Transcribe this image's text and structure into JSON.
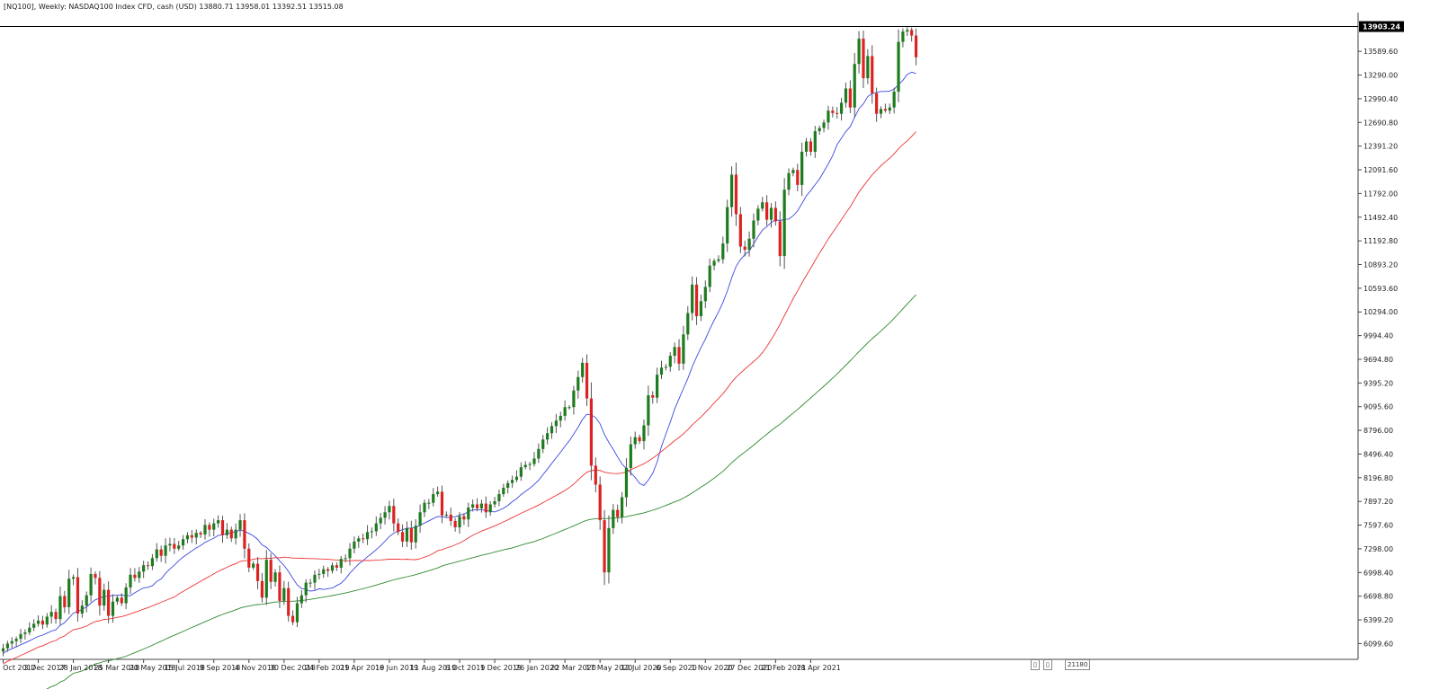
{
  "header": {
    "title": "[NQ100], Weekly:  NASDAQ100 Index CFD, cash (USD)  13880.71 13958.01 13392.51 13515.08"
  },
  "price_tag": "13903.24",
  "controls": {
    "scroll_label": "21180"
  },
  "colors": {
    "bull": "#1e7b1e",
    "bear": "#dc2222",
    "wick": "#555555",
    "ma_fast": "#3b48e0",
    "ma_mid": "#ee3333",
    "ma_slow": "#2d8a2d",
    "price_line": "#000000",
    "price_tag_bg": "#000000"
  },
  "chart_data": {
    "type": "candlestick",
    "symbol": "NQ100",
    "timeframe": "Weekly",
    "y_ticks": [
      "13589.60",
      "13290.00",
      "12990.40",
      "12690.80",
      "12391.20",
      "12091.60",
      "11792.00",
      "11492.40",
      "11192.80",
      "10893.20",
      "10593.60",
      "10294.00",
      "9994.40",
      "9694.80",
      "9395.20",
      "9095.60",
      "8796.00",
      "8496.40",
      "8196.80",
      "7897.20",
      "7597.60",
      "7298.00",
      "6998.40",
      "6698.80",
      "6399.20",
      "6099.60"
    ],
    "x_ticks": [
      "8 Oct 2017",
      "3 Dec 2017",
      "28 Jan 2018",
      "25 Mar 2018",
      "20 May 2018",
      "15 Jul 2018",
      "9 Sep 2018",
      "4 Nov 2018",
      "30 Dec 2018",
      "24 Feb 2019",
      "21 Apr 2019",
      "16 Jun 2019",
      "11 Aug 2019",
      "6 Oct 2019",
      "1 Dec 2019",
      "26 Jan 2020",
      "22 Mar 2020",
      "17 May 2020",
      "12 Jul 2020",
      "6 Sep 2020",
      "1 Nov 2020",
      "27 Dec 2020",
      "21 Feb 2021",
      "18 Apr 2021"
    ],
    "ylim": [
      5900,
      14080
    ],
    "current_price": 13903.24,
    "closes": [
      6040,
      6100,
      6130,
      6160,
      6220,
      6240,
      6300,
      6350,
      6390,
      6340,
      6440,
      6500,
      6410,
      6700,
      6560,
      6920,
      6940,
      6480,
      6580,
      6710,
      6980,
      6930,
      6580,
      6780,
      6450,
      6630,
      6680,
      6610,
      6810,
      6970,
      6930,
      7010,
      7090,
      7080,
      7180,
      7290,
      7210,
      7340,
      7360,
      7300,
      7340,
      7420,
      7470,
      7440,
      7500,
      7480,
      7600,
      7540,
      7620,
      7660,
      7470,
      7540,
      7430,
      7540,
      7660,
      7300,
      7060,
      7110,
      6890,
      6680,
      7160,
      6880,
      7000,
      6640,
      6800,
      6450,
      6370,
      6610,
      6710,
      6870,
      6870,
      6970,
      6980,
      7040,
      7020,
      7090,
      7060,
      7170,
      7180,
      7300,
      7390,
      7430,
      7420,
      7510,
      7520,
      7620,
      7690,
      7760,
      7840,
      7620,
      7510,
      7390,
      7560,
      7380,
      7590,
      7760,
      7880,
      7880,
      7990,
      8020,
      7720,
      7730,
      7650,
      7570,
      7710,
      7670,
      7820,
      7860,
      7810,
      7870,
      7760,
      7860,
      7900,
      7990,
      8070,
      8130,
      8170,
      8210,
      8330,
      8360,
      8370,
      8440,
      8560,
      8680,
      8760,
      8850,
      8920,
      8980,
      9090,
      9090,
      9300,
      9470,
      9650,
      9200,
      8350,
      8110,
      7660,
      7000,
      7560,
      7790,
      7700,
      7950,
      8320,
      8620,
      8710,
      8660,
      8860,
      9240,
      9210,
      9500,
      9590,
      9600,
      9740,
      9850,
      9640,
      10010,
      10280,
      10640,
      10240,
      10430,
      10610,
      10880,
      10940,
      10960,
      11160,
      11620,
      12030,
      11530,
      11120,
      11080,
      11220,
      11450,
      11600,
      11680,
      11460,
      11610,
      11440,
      11000,
      11840,
      12050,
      12090,
      11900,
      12320,
      12450,
      12320,
      12580,
      12620,
      12690,
      12840,
      12810,
      12800,
      12940,
      13120,
      12880,
      13430,
      13750,
      13250,
      13530,
      13060,
      12800,
      12860,
      12840,
      12880,
      13080,
      13710,
      13840,
      13860,
      13790,
      13515
    ]
  }
}
